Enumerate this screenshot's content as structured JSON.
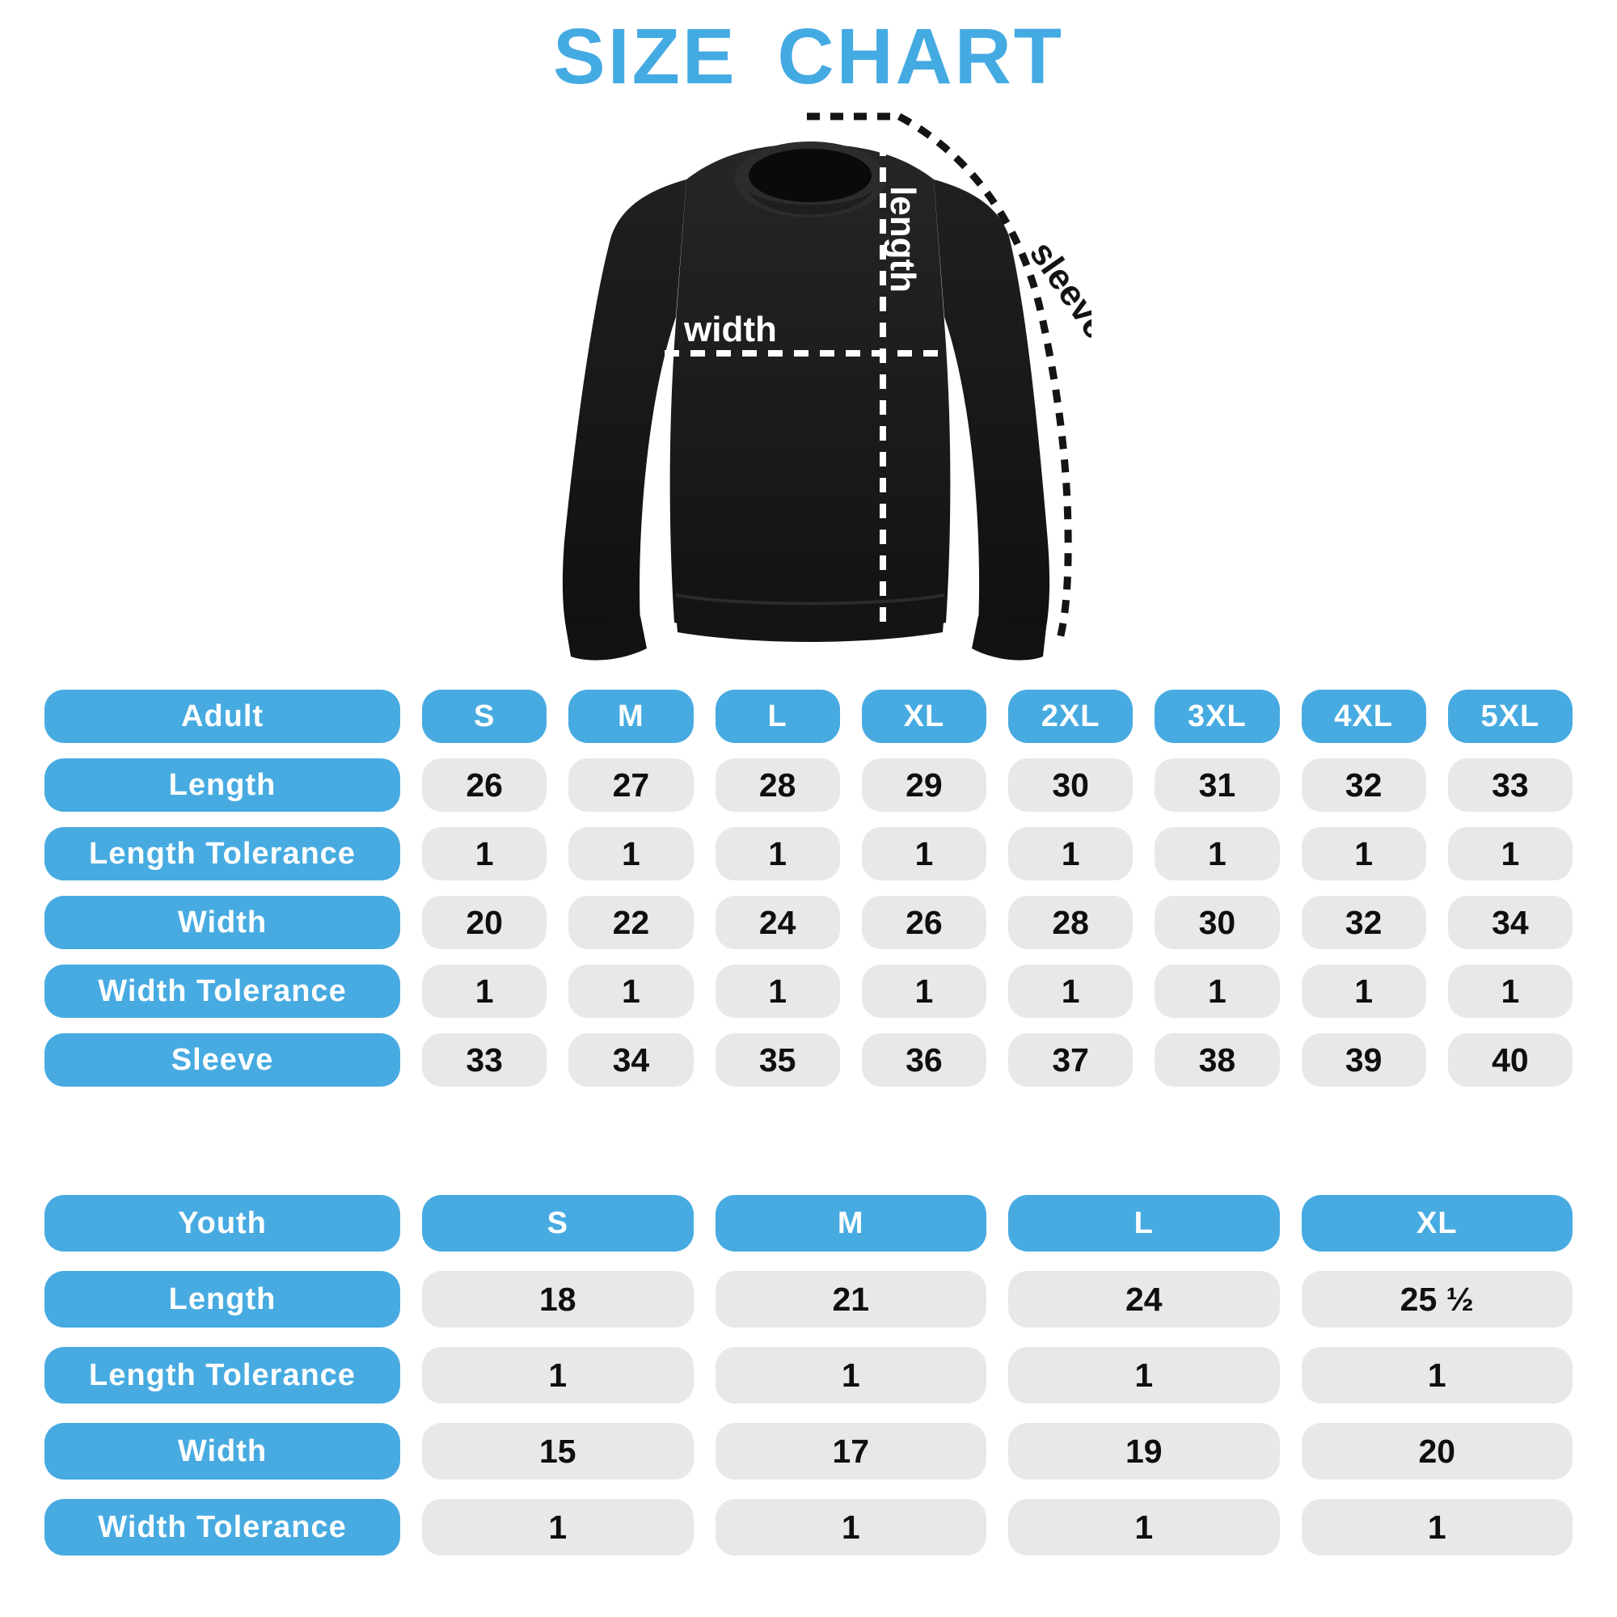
{
  "title": "SIZE CHART",
  "colors": {
    "title_blue": "#44AAE2",
    "pill_blue": "#47ABE1",
    "cell_gray": "#E8E8EA",
    "cell_text": "#0F0F10",
    "garment": "#1B1B1D"
  },
  "diagram": {
    "garment": "crewneck-sweatshirt",
    "length_label": "length",
    "width_label": "width",
    "sleeve_label": "sleeve"
  },
  "adult_table": {
    "header": {
      "label": "Adult",
      "sizes": [
        "S",
        "M",
        "L",
        "XL",
        "2XL",
        "3XL",
        "4XL",
        "5XL"
      ]
    },
    "rows": [
      {
        "label": "Length",
        "values": [
          "26",
          "27",
          "28",
          "29",
          "30",
          "31",
          "32",
          "33"
        ]
      },
      {
        "label": "Length Tolerance",
        "values": [
          "1",
          "1",
          "1",
          "1",
          "1",
          "1",
          "1",
          "1"
        ]
      },
      {
        "label": "Width",
        "values": [
          "20",
          "22",
          "24",
          "26",
          "28",
          "30",
          "32",
          "34"
        ]
      },
      {
        "label": "Width Tolerance",
        "values": [
          "1",
          "1",
          "1",
          "1",
          "1",
          "1",
          "1",
          "1"
        ]
      },
      {
        "label": "Sleeve",
        "values": [
          "33",
          "34",
          "35",
          "36",
          "37",
          "38",
          "39",
          "40"
        ]
      }
    ]
  },
  "youth_table": {
    "header": {
      "label": "Youth",
      "sizes": [
        "S",
        "M",
        "L",
        "XL"
      ]
    },
    "rows": [
      {
        "label": "Length",
        "values": [
          "18",
          "21",
          "24",
          "25 ½"
        ]
      },
      {
        "label": "Length Tolerance",
        "values": [
          "1",
          "1",
          "1",
          "1"
        ]
      },
      {
        "label": "Width",
        "values": [
          "15",
          "17",
          "19",
          "20"
        ]
      },
      {
        "label": "Width Tolerance",
        "values": [
          "1",
          "1",
          "1",
          "1"
        ]
      }
    ]
  }
}
